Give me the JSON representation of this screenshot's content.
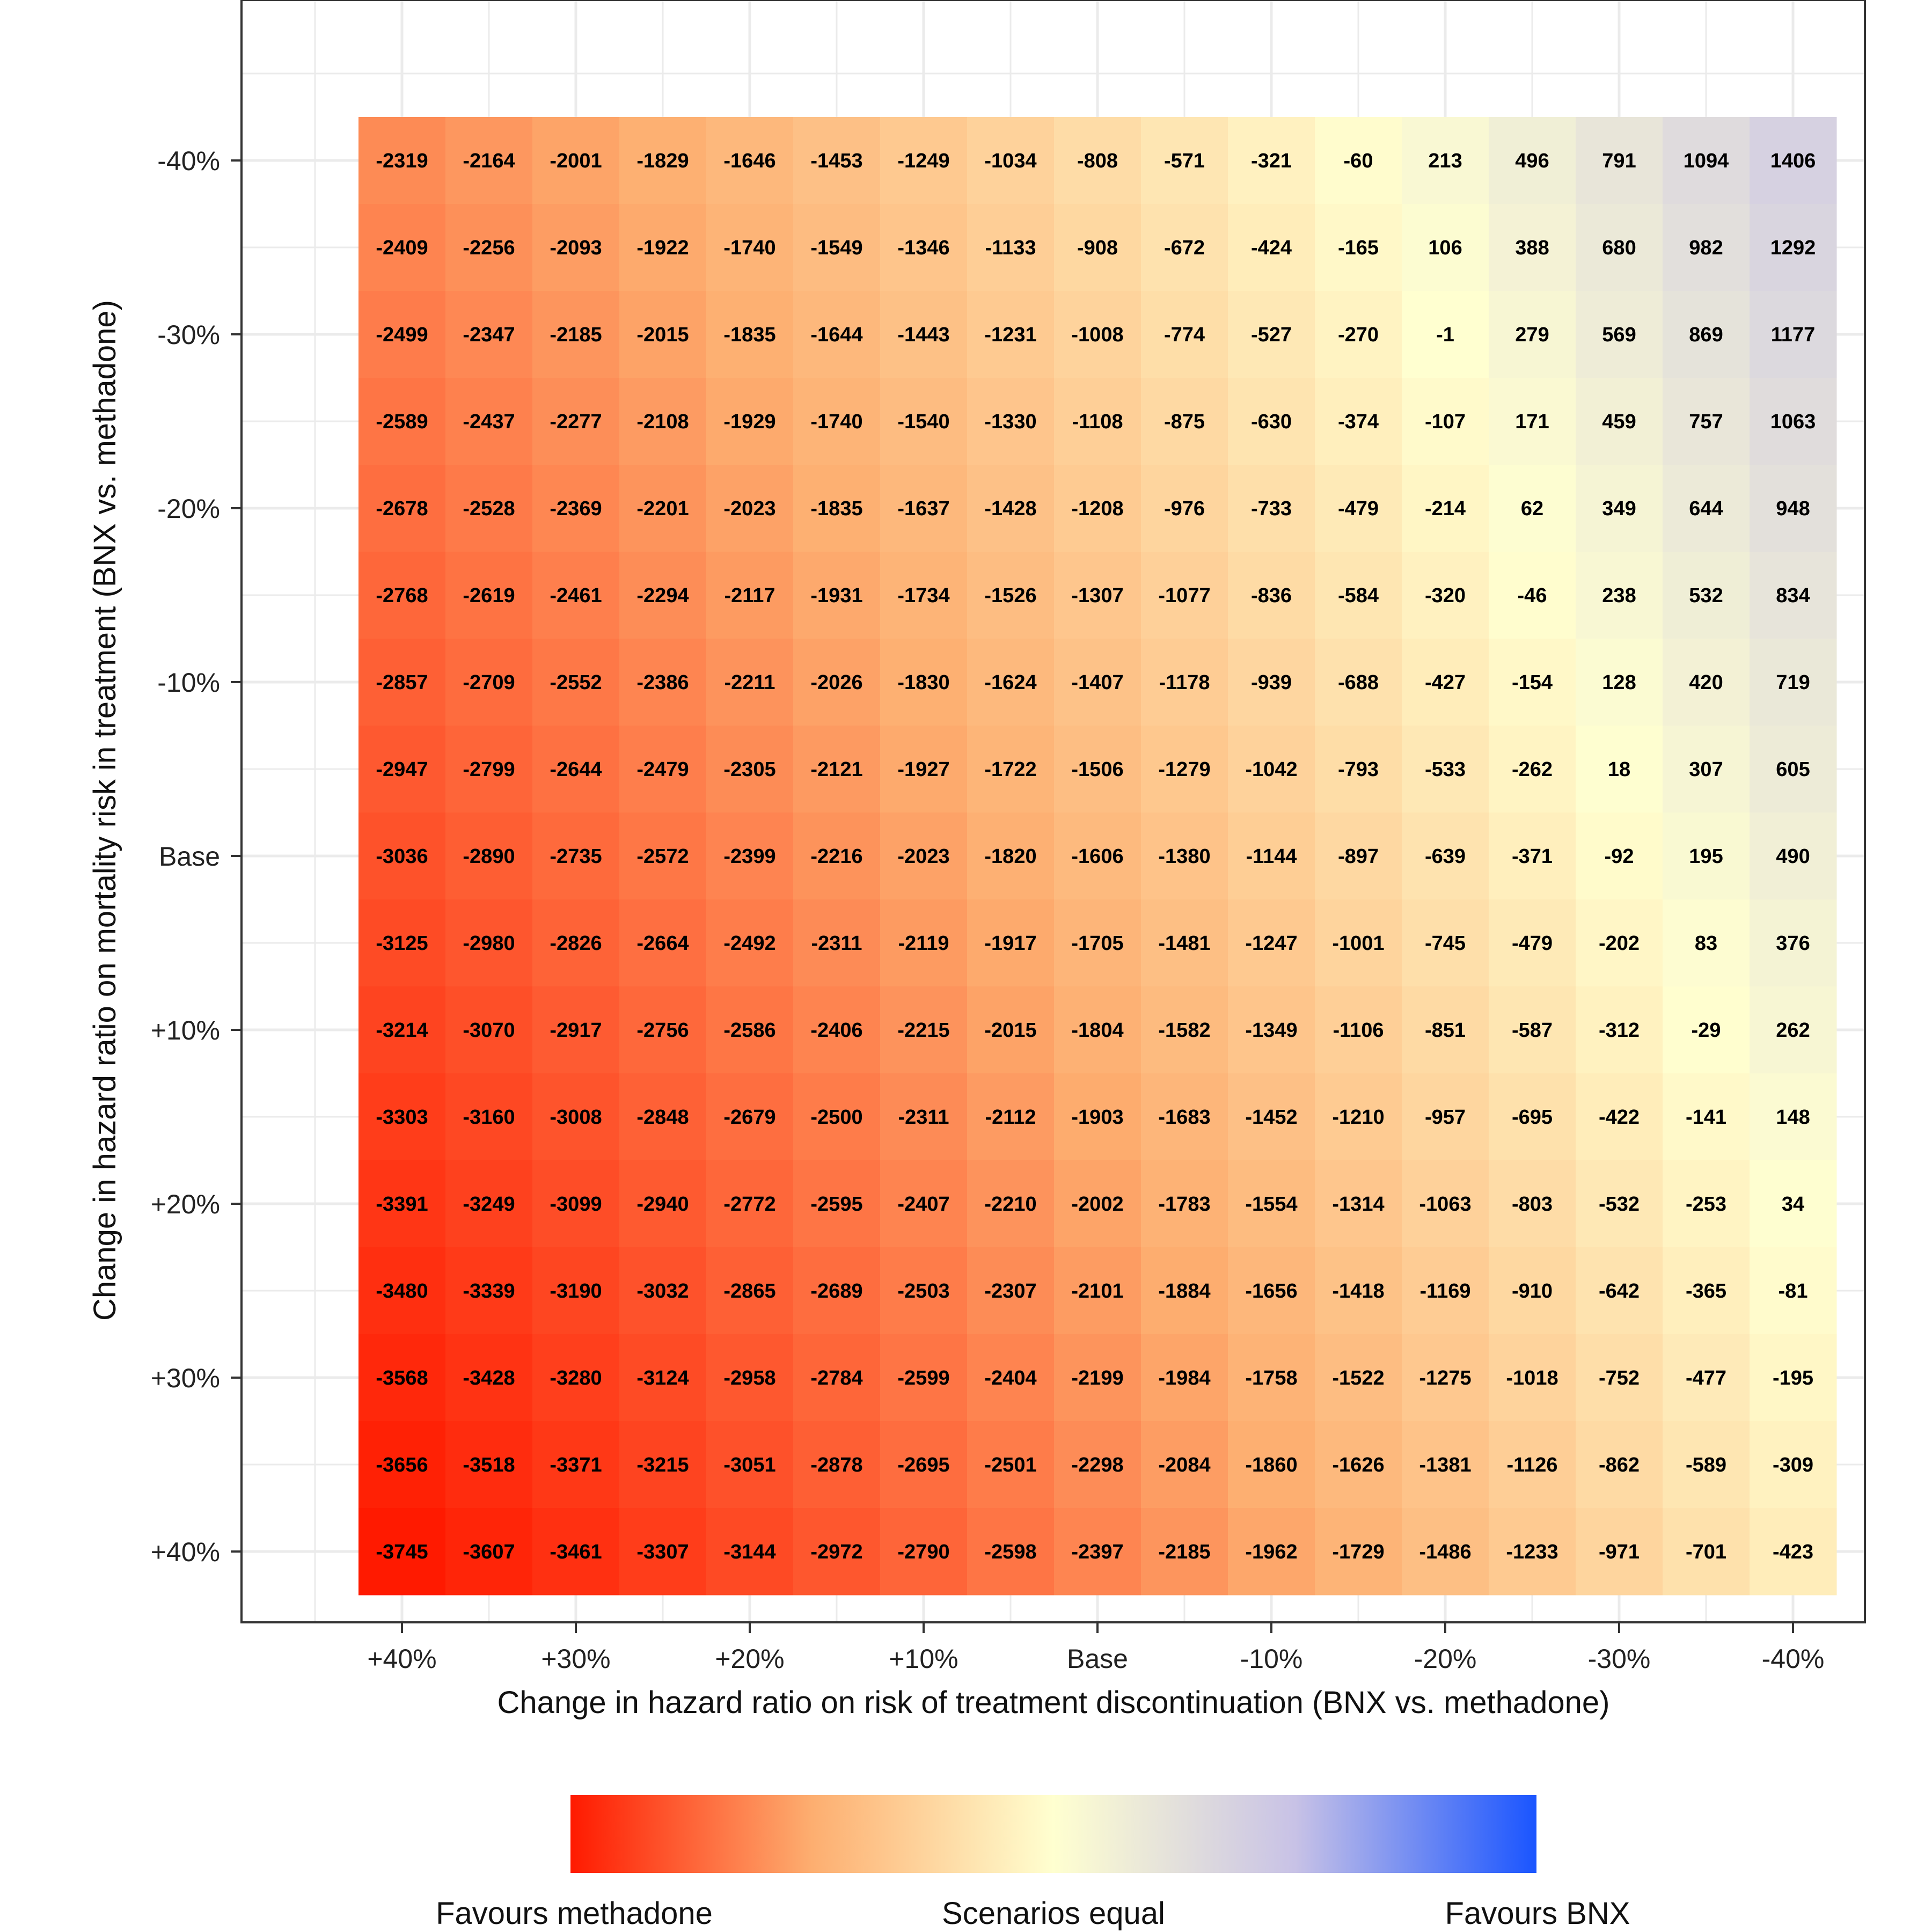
{
  "chart_data": {
    "type": "heatmap",
    "title": "",
    "xlabel": "Change in hazard ratio on risk of treatment discontinuation (BNX vs. methadone)",
    "ylabel": "Change in hazard ratio on mortality risk in treatment (BNX vs. methadone)",
    "x_tick_labels": [
      "+40%",
      "+30%",
      "+20%",
      "+10%",
      "Base",
      "-10%",
      "-20%",
      "-30%",
      "-40%"
    ],
    "y_tick_labels": [
      "-40%",
      "-30%",
      "-20%",
      "-10%",
      "Base",
      "+10%",
      "+20%",
      "+30%",
      "+40%"
    ],
    "x_steps": [
      "+40%",
      "+35%",
      "+30%",
      "+25%",
      "+20%",
      "+15%",
      "+10%",
      "+5%",
      "Base",
      "-5%",
      "-10%",
      "-15%",
      "-20%",
      "-25%",
      "-30%",
      "-35%",
      "-40%"
    ],
    "y_steps": [
      "-40%",
      "-35%",
      "-30%",
      "-25%",
      "-20%",
      "-15%",
      "-10%",
      "-5%",
      "Base",
      "+5%",
      "+10%",
      "+15%",
      "+20%",
      "+25%",
      "+30%",
      "+35%",
      "+40%"
    ],
    "values": [
      [
        -2319,
        -2164,
        -2001,
        -1829,
        -1646,
        -1453,
        -1249,
        -1034,
        -808,
        -571,
        -321,
        -60,
        213,
        496,
        791,
        1094,
        1406
      ],
      [
        -2409,
        -2256,
        -2093,
        -1922,
        -1740,
        -1549,
        -1346,
        -1133,
        -908,
        -672,
        -424,
        -165,
        106,
        388,
        680,
        982,
        1292
      ],
      [
        -2499,
        -2347,
        -2185,
        -2015,
        -1835,
        -1644,
        -1443,
        -1231,
        -1008,
        -774,
        -527,
        -270,
        -1,
        279,
        569,
        869,
        1177
      ],
      [
        -2589,
        -2437,
        -2277,
        -2108,
        -1929,
        -1740,
        -1540,
        -1330,
        -1108,
        -875,
        -630,
        -374,
        -107,
        171,
        459,
        757,
        1063
      ],
      [
        -2678,
        -2528,
        -2369,
        -2201,
        -2023,
        -1835,
        -1637,
        -1428,
        -1208,
        -976,
        -733,
        -479,
        -214,
        62,
        349,
        644,
        948
      ],
      [
        -2768,
        -2619,
        -2461,
        -2294,
        -2117,
        -1931,
        -1734,
        -1526,
        -1307,
        -1077,
        -836,
        -584,
        -320,
        -46,
        238,
        532,
        834
      ],
      [
        -2857,
        -2709,
        -2552,
        -2386,
        -2211,
        -2026,
        -1830,
        -1624,
        -1407,
        -1178,
        -939,
        -688,
        -427,
        -154,
        128,
        420,
        719
      ],
      [
        -2947,
        -2799,
        -2644,
        -2479,
        -2305,
        -2121,
        -1927,
        -1722,
        -1506,
        -1279,
        -1042,
        -793,
        -533,
        -262,
        18,
        307,
        605
      ],
      [
        -3036,
        -2890,
        -2735,
        -2572,
        -2399,
        -2216,
        -2023,
        -1820,
        -1606,
        -1380,
        -1144,
        -897,
        -639,
        -371,
        -92,
        195,
        490
      ],
      [
        -3125,
        -2980,
        -2826,
        -2664,
        -2492,
        -2311,
        -2119,
        -1917,
        -1705,
        -1481,
        -1247,
        -1001,
        -745,
        -479,
        -202,
        83,
        376
      ],
      [
        -3214,
        -3070,
        -2917,
        -2756,
        -2586,
        -2406,
        -2215,
        -2015,
        -1804,
        -1582,
        -1349,
        -1106,
        -851,
        -587,
        -312,
        -29,
        262
      ],
      [
        -3303,
        -3160,
        -3008,
        -2848,
        -2679,
        -2500,
        -2311,
        -2112,
        -1903,
        -1683,
        -1452,
        -1210,
        -957,
        -695,
        -422,
        -141,
        148
      ],
      [
        -3391,
        -3249,
        -3099,
        -2940,
        -2772,
        -2595,
        -2407,
        -2210,
        -2002,
        -1783,
        -1554,
        -1314,
        -1063,
        -803,
        -532,
        -253,
        34
      ],
      [
        -3480,
        -3339,
        -3190,
        -3032,
        -2865,
        -2689,
        -2503,
        -2307,
        -2101,
        -1884,
        -1656,
        -1418,
        -1169,
        -910,
        -642,
        -365,
        -81
      ],
      [
        -3568,
        -3428,
        -3280,
        -3124,
        -2958,
        -2784,
        -2599,
        -2404,
        -2199,
        -1984,
        -1758,
        -1522,
        -1275,
        -1018,
        -752,
        -477,
        -195
      ],
      [
        -3656,
        -3518,
        -3371,
        -3215,
        -3051,
        -2878,
        -2695,
        -2501,
        -2298,
        -2084,
        -1860,
        -1626,
        -1381,
        -1126,
        -862,
        -589,
        -309
      ],
      [
        -3745,
        -3607,
        -3461,
        -3307,
        -3144,
        -2972,
        -2790,
        -2598,
        -2397,
        -2185,
        -1962,
        -1729,
        -1486,
        -1233,
        -971,
        -701,
        -423
      ]
    ],
    "color_scale": {
      "min_value": -3745,
      "mid_value": 0,
      "max_value": 3745,
      "low_color": "#ff1a00",
      "mid_low_color": "#fdae70",
      "mid_color": "#ffffd0",
      "mid_high_color": "#c8c2e6",
      "high_color": "#1a55ff"
    },
    "grid": true,
    "legend": {
      "position": "bottom",
      "labels": [
        "Favours methadone",
        "Scenarios equal",
        "Favours BNX"
      ]
    }
  }
}
